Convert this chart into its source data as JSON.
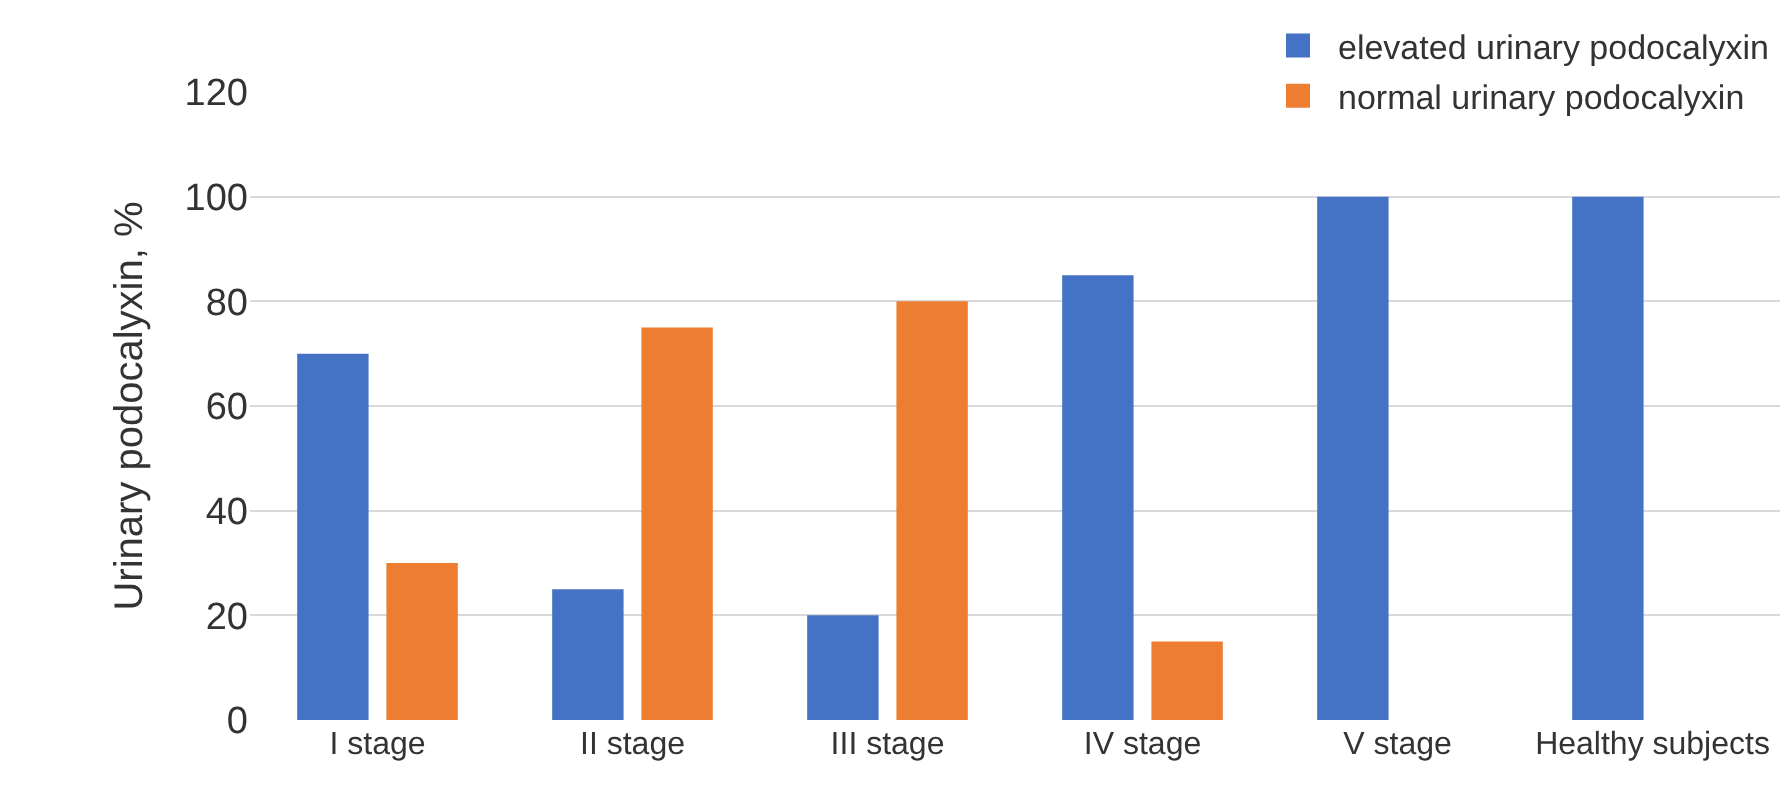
{
  "chart_data": {
    "type": "bar",
    "ylabel": "Urinary podocalyxin, %",
    "categories": [
      "I stage",
      "II stage",
      "III stage",
      "IV stage",
      "V stage",
      "Healthy subjects"
    ],
    "series": [
      {
        "name": "elevated urinary podocalyxin",
        "color": "#4472c4",
        "values": [
          70,
          25,
          20,
          85,
          100,
          100
        ]
      },
      {
        "name": "normal urinary podocalyxin",
        "color": "#ed7d31",
        "values": [
          30,
          75,
          80,
          15,
          0,
          0
        ]
      }
    ],
    "ylim": [
      0,
      120
    ],
    "yticks": [
      0,
      20,
      40,
      60,
      80,
      100,
      120
    ],
    "grid": "y",
    "legend": "top right"
  }
}
